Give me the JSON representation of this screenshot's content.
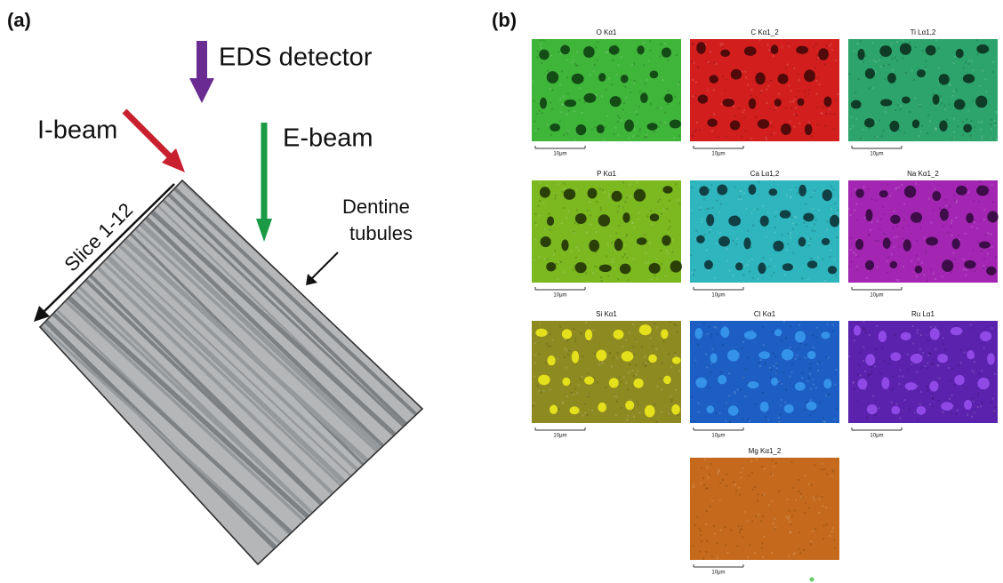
{
  "panels": {
    "a": {
      "label": "(a)",
      "annotations": {
        "eds_detector": "EDS detector",
        "i_beam": "I-beam",
        "e_beam": "E-beam",
        "slice": "Slice 1-12",
        "dentine_line1": "Dentine",
        "dentine_line2": "tubules"
      }
    },
    "b": {
      "label": "(b)",
      "maps": [
        {
          "title": "O Kα1",
          "scale_bar": "10μm"
        },
        {
          "title": "C Kα1_2",
          "scale_bar": "10μm"
        },
        {
          "title": "Ti Lα1,2",
          "scale_bar": "10μm"
        },
        {
          "title": "P Kα1",
          "scale_bar": "10μm"
        },
        {
          "title": "Ca Lα1,2",
          "scale_bar": "10μm"
        },
        {
          "title": "Na Kα1_2",
          "scale_bar": "10μm"
        },
        {
          "title": "Si Kα1",
          "scale_bar": "10μm"
        },
        {
          "title": "Cl Kα1",
          "scale_bar": "10μm"
        },
        {
          "title": "Ru Lα1",
          "scale_bar": "10μm"
        },
        {
          "title": "Mg Kα1_2",
          "scale_bar": "10μm"
        }
      ]
    }
  }
}
